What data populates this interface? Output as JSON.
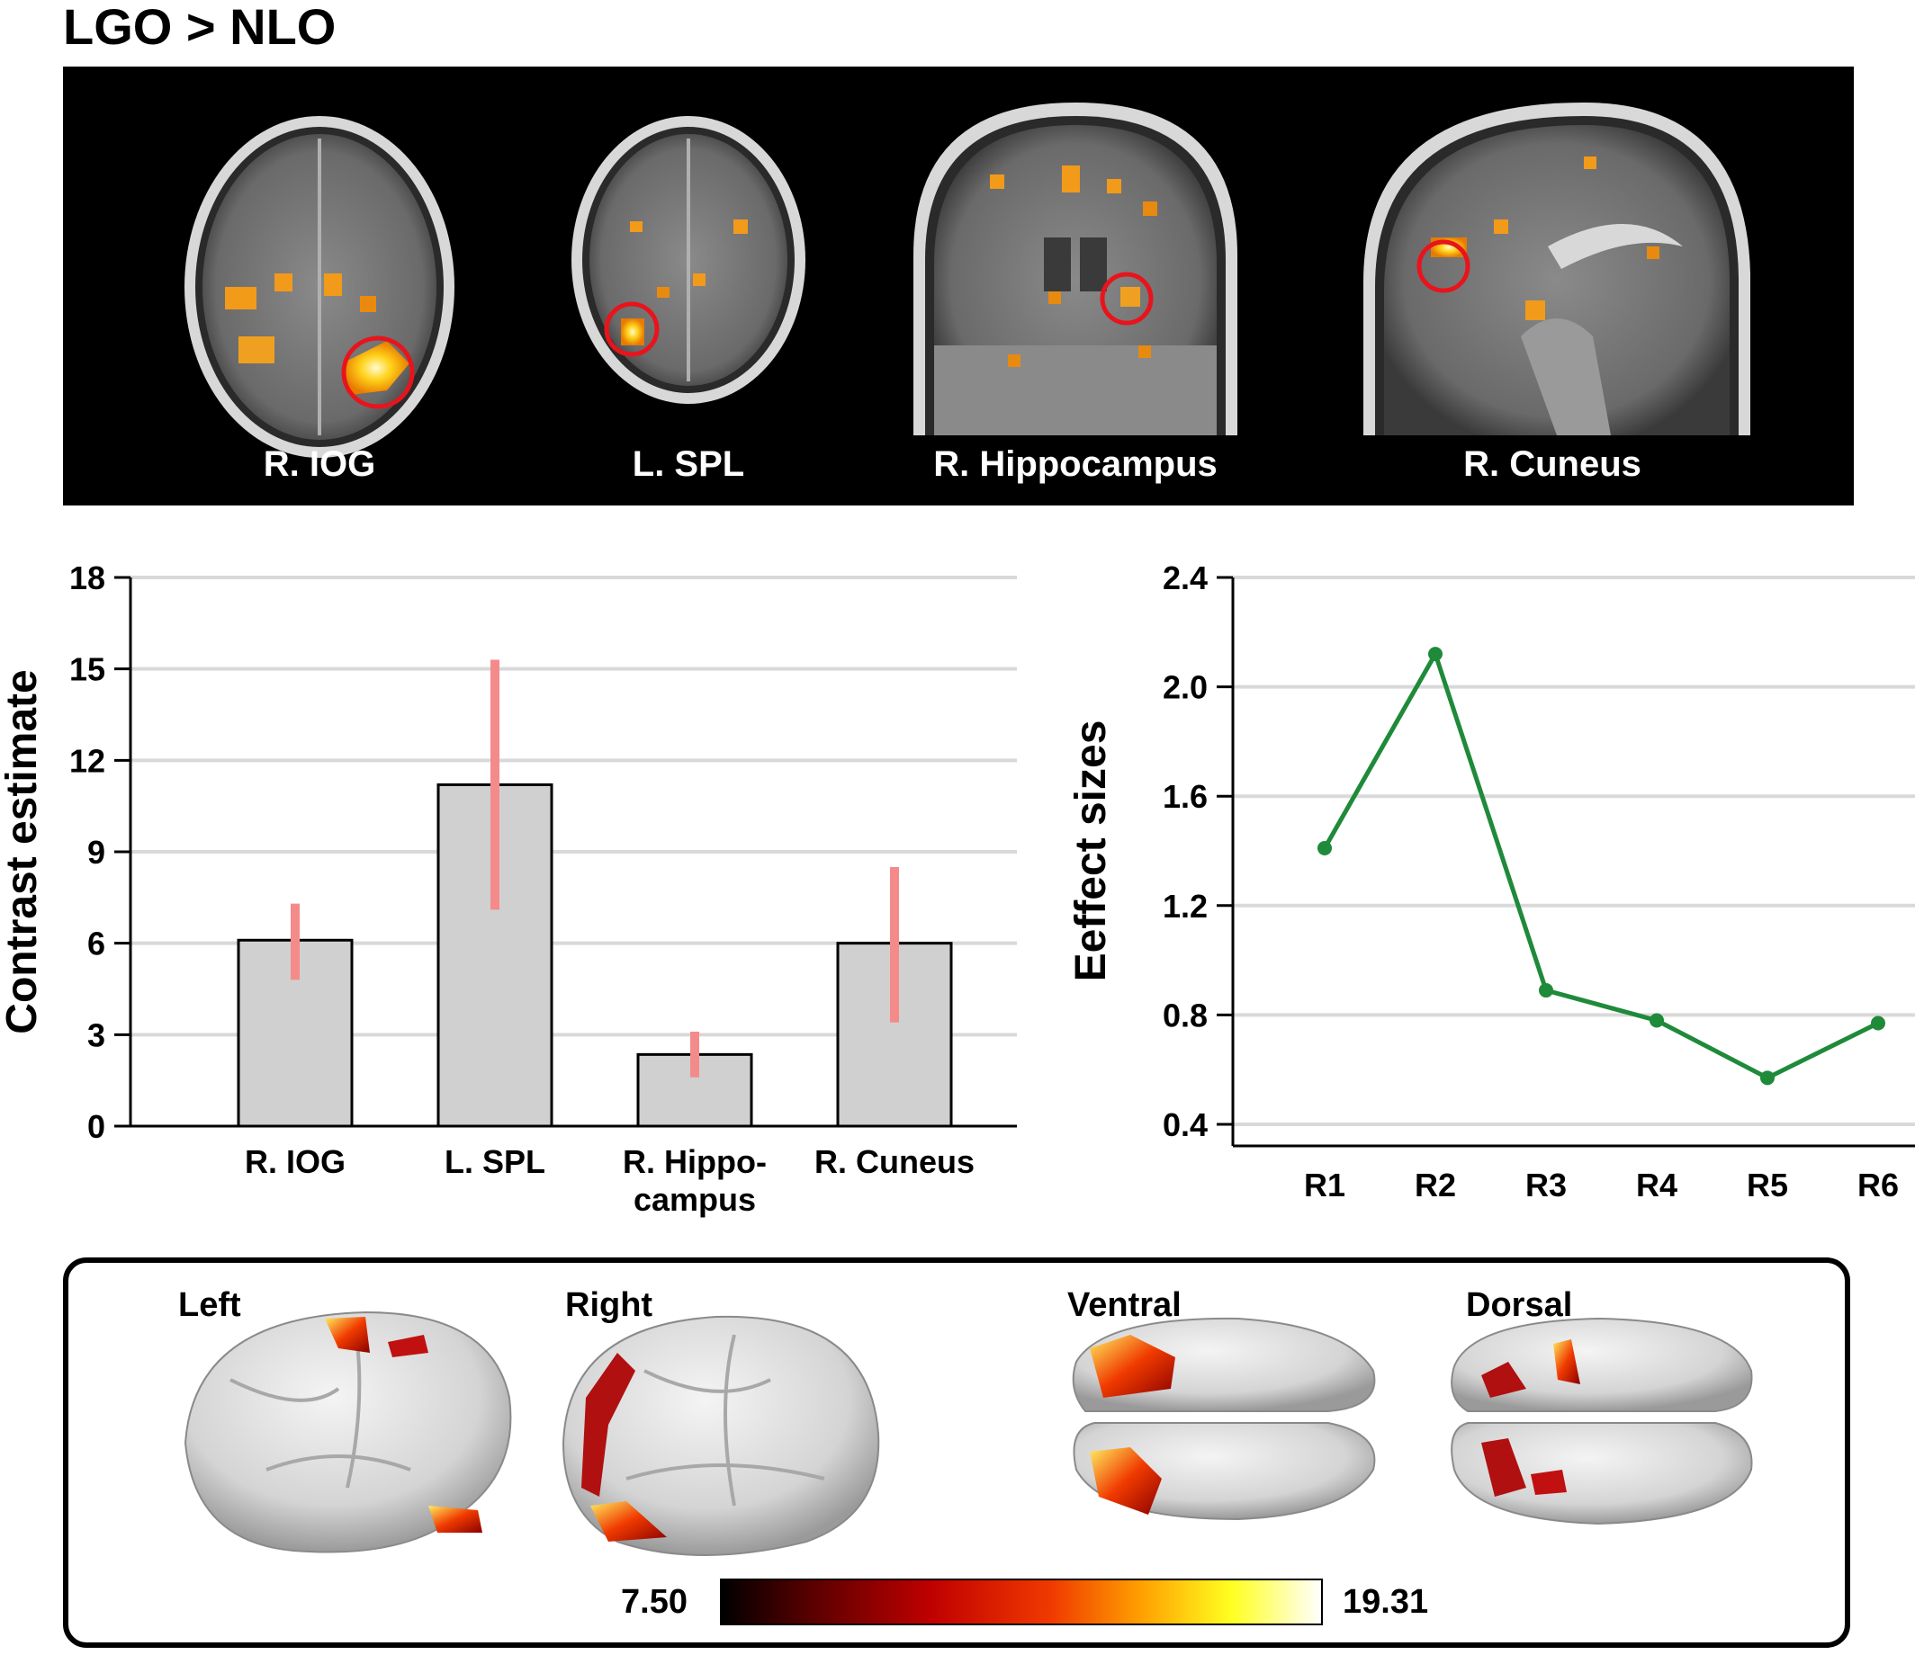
{
  "title": "LGO > NLO",
  "mri_labels": [
    "R. IOG",
    "L. SPL",
    "R. Hippocampus",
    "R. Cuneus"
  ],
  "highlight_color": "#e8141c",
  "bar_chart": {
    "type": "bar",
    "ylabel": "Contrast estimate",
    "ylim": [
      0,
      18
    ],
    "yticks": [
      0,
      3,
      6,
      9,
      12,
      15,
      18
    ],
    "categories": [
      [
        "R. IOG"
      ],
      [
        "L. SPL"
      ],
      [
        "R. Hippo-",
        "campus"
      ],
      [
        "R. Cuneus"
      ]
    ],
    "values": [
      6.1,
      11.2,
      2.35,
      6.0
    ],
    "error_low": [
      4.8,
      7.1,
      1.6,
      3.4
    ],
    "error_high": [
      7.3,
      15.3,
      3.1,
      8.5
    ],
    "bar_color": "#d0d0d0",
    "error_color": "#f58a8a",
    "grid": true
  },
  "line_chart": {
    "type": "line",
    "ylabel": "Eeffect sizes",
    "ylim": [
      0.4,
      2.4
    ],
    "yticks": [
      "0.4",
      "0.8",
      "1.2",
      "1.6",
      "2.0",
      "2.4"
    ],
    "categories": [
      "R1",
      "R2",
      "R3",
      "R4",
      "R5",
      "R6"
    ],
    "values": [
      1.41,
      2.12,
      0.89,
      0.78,
      0.57,
      0.77
    ],
    "line_color": "#1f8a3a",
    "grid": true
  },
  "surface_views": [
    "Left",
    "Right",
    "Ventral",
    "Dorsal"
  ],
  "colorbar": {
    "min": "7.50",
    "max": "19.31"
  }
}
